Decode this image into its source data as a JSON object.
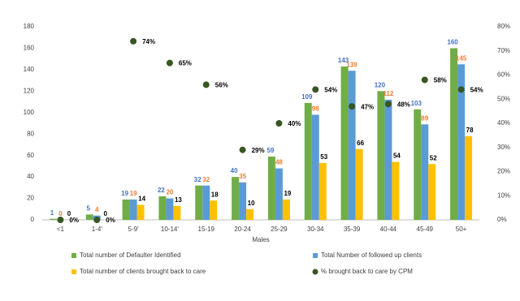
{
  "chart_data": {
    "type": "bar",
    "x_label": "Males",
    "categories": [
      "<1",
      "1-4'",
      "5-9'",
      "10-14'",
      "15-19",
      "20-24",
      "25-29",
      "30-34",
      "35-39",
      "40-44",
      "45-49",
      "50+"
    ],
    "series": [
      {
        "name": "Total number of Defaulter Identified",
        "color": "#70ad47",
        "label_color": "#4472c4",
        "values": [
          1,
          5,
          19,
          22,
          32,
          40,
          59,
          109,
          143,
          120,
          103,
          160
        ]
      },
      {
        "name": "Total Number of followed up clients",
        "color": "#5b9bd5",
        "label_color": "#ed7d31",
        "values": [
          0,
          4,
          19,
          20,
          32,
          35,
          48,
          98,
          139,
          112,
          89,
          145
        ]
      },
      {
        "name": "Total number of clients brought back to care",
        "color": "#ffc000",
        "label_color": "#000000",
        "values": [
          0,
          0,
          14,
          13,
          18,
          10,
          19,
          53,
          66,
          54,
          52,
          78
        ]
      },
      {
        "name": "% brought back to care by CPM",
        "type": "scatter",
        "axis": "y2",
        "color": "#375623",
        "label_color": "#000000",
        "values": [
          0,
          0,
          74,
          65,
          56,
          29,
          40,
          54,
          47,
          48,
          58,
          54
        ],
        "value_labels": [
          "0%",
          "0%",
          "74%",
          "65%",
          "56%",
          "29%",
          "40%",
          "54%",
          "47%",
          "48%",
          "58%",
          "54%"
        ]
      }
    ],
    "ylim": [
      0,
      180
    ],
    "yticks": [
      0,
      20,
      40,
      60,
      80,
      100,
      120,
      140,
      160,
      180
    ],
    "y2lim": [
      0,
      80
    ],
    "y2ticks": [
      {
        "value": 0,
        "label": "0%"
      },
      {
        "value": 10,
        "label": "10%"
      },
      {
        "value": 20,
        "label": "20%"
      },
      {
        "value": 30,
        "label": "30%"
      },
      {
        "value": 40,
        "label": "40%"
      },
      {
        "value": 50,
        "label": "50%"
      },
      {
        "value": 60,
        "label": "60%"
      },
      {
        "value": 70,
        "label": "70%"
      },
      {
        "value": 80,
        "label": "80%"
      }
    ],
    "legend": "bottom"
  }
}
